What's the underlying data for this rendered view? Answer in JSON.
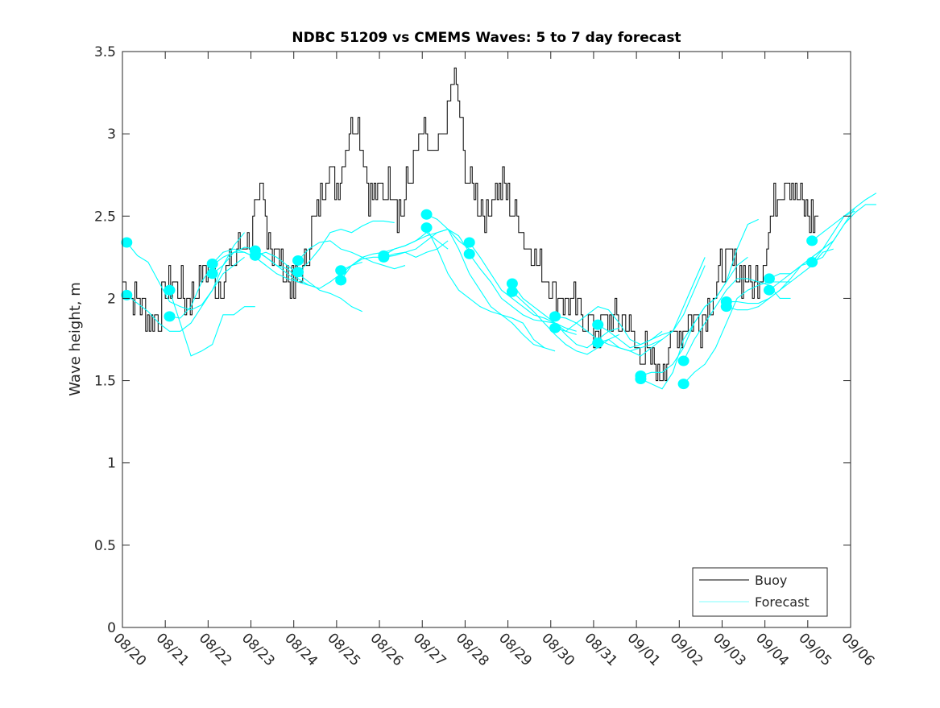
{
  "chart_data": {
    "type": "line",
    "title": "NDBC 51209 vs CMEMS Waves: 5 to 7 day forecast",
    "xlabel": "",
    "ylabel": "Wave height, m",
    "ylim": [
      0,
      3.5
    ],
    "xlim_days": [
      0,
      17
    ],
    "yticks": [
      "0",
      "0.5",
      "1",
      "1.5",
      "2",
      "2.5",
      "3",
      "3.5"
    ],
    "xticks": [
      "08/20",
      "08/21",
      "08/22",
      "08/23",
      "08/24",
      "08/25",
      "08/26",
      "08/27",
      "08/28",
      "08/29",
      "08/30",
      "08/31",
      "09/01",
      "09/02",
      "09/03",
      "09/04",
      "09/05",
      "09/06"
    ],
    "legend": {
      "position": "bottom-right",
      "entries": [
        "Buoy",
        "Forecast"
      ]
    },
    "colors": {
      "buoy": "#000000",
      "forecast": "#00ffff"
    },
    "buoy": {
      "start_day": 0,
      "step_days": 0.25,
      "values": [
        2.1,
        2.0,
        1.95,
        1.85,
        2.05,
        2.1,
        2.0,
        2.1,
        2.2,
        2.1,
        2.2,
        2.3,
        2.4,
        2.6,
        2.3,
        2.2,
        2.05,
        2.2,
        2.5,
        2.8,
        2.7,
        3.0,
        3.1,
        2.6,
        2.6,
        2.7,
        2.5,
        2.8,
        3.0,
        2.8,
        3.0,
        3.35,
        2.8,
        2.65,
        2.5,
        2.7,
        2.6,
        2.5,
        2.3,
        2.2,
        2.05,
        2.0,
        1.95,
        1.9,
        1.8,
        1.85,
        1.9,
        1.85,
        1.7,
        1.65,
        1.55,
        1.7,
        1.8,
        1.9,
        1.85,
        2.0,
        2.2,
        2.2,
        2.15,
        2.1,
        2.3,
        2.6,
        2.8,
        2.6,
        2.5,
        2.5
      ]
    },
    "forecast": {
      "step_days": 0.25,
      "series": [
        {
          "start_day": 0.1,
          "values": [
            2.34,
            2.26,
            2.22,
            2.1,
            1.98,
            1.95,
            1.93,
            1.96,
            2.05,
            2.2,
            2.32,
            2.4
          ]
        },
        {
          "start_day": 0.1,
          "values": [
            2.02,
            1.97,
            1.92,
            1.85,
            1.8,
            1.8,
            1.85,
            1.95,
            2.05,
            2.15,
            2.2,
            2.25
          ]
        },
        {
          "start_day": 1.1,
          "values": [
            2.05,
            1.85,
            1.65,
            1.68,
            1.72,
            1.9,
            1.9,
            1.95,
            1.95
          ]
        },
        {
          "start_day": 1.1,
          "values": [
            1.89,
            1.88,
            1.95,
            2.1,
            2.2,
            2.25,
            2.28,
            2.28,
            2.25,
            2.2
          ]
        },
        {
          "start_day": 2.1,
          "values": [
            2.21,
            2.28,
            2.3,
            2.28,
            2.25,
            2.2,
            2.15,
            2.12,
            2.1,
            2.08
          ]
        },
        {
          "start_day": 2.1,
          "values": [
            2.15,
            2.2,
            2.28,
            2.31,
            2.3,
            2.25,
            2.2,
            2.18,
            2.12,
            2.08
          ]
        },
        {
          "start_day": 3.1,
          "values": [
            2.29,
            2.25,
            2.2,
            2.15,
            2.1,
            2.08,
            2.06,
            2.1,
            2.15,
            2.2,
            2.22
          ]
        },
        {
          "start_day": 3.1,
          "values": [
            2.26,
            2.28,
            2.25,
            2.2,
            2.15,
            2.1,
            2.05,
            2.03,
            2.0,
            1.95,
            1.92
          ]
        },
        {
          "start_day": 4.1,
          "values": [
            2.23,
            2.3,
            2.34,
            2.35,
            2.3,
            2.28,
            2.25,
            2.22,
            2.2,
            2.18,
            2.2
          ]
        },
        {
          "start_day": 4.1,
          "values": [
            2.16,
            2.22,
            2.3,
            2.4,
            2.42,
            2.4,
            2.44,
            2.47,
            2.47,
            2.46
          ]
        },
        {
          "start_day": 5.1,
          "values": [
            2.17,
            2.2,
            2.25,
            2.27,
            2.28,
            2.3,
            2.32,
            2.35,
            2.4,
            2.35,
            2.3
          ]
        },
        {
          "start_day": 5.1,
          "values": [
            2.11,
            2.2,
            2.24,
            2.25,
            2.25,
            2.26,
            2.28,
            2.25,
            2.28,
            2.3,
            2.35
          ]
        },
        {
          "start_day": 6.1,
          "values": [
            2.26,
            2.3,
            2.32,
            2.35,
            2.38,
            2.4,
            2.42,
            2.35,
            2.3
          ]
        },
        {
          "start_day": 6.1,
          "values": [
            2.25,
            2.27,
            2.28,
            2.3,
            2.35,
            2.4,
            2.42,
            2.38,
            2.28
          ]
        },
        {
          "start_day": 7.1,
          "values": [
            2.51,
            2.48,
            2.42,
            2.3,
            2.15,
            2.05,
            1.95,
            1.9,
            1.85,
            1.78,
            1.72,
            1.7,
            1.68
          ]
        },
        {
          "start_day": 7.1,
          "values": [
            2.43,
            2.3,
            2.15,
            2.05,
            2.0,
            1.95,
            1.92,
            1.9,
            1.88,
            1.85,
            1.75,
            1.7
          ]
        },
        {
          "start_day": 8.1,
          "values": [
            2.34,
            2.25,
            2.15,
            2.05,
            2.0,
            1.95,
            1.9,
            1.88,
            1.85,
            1.8,
            1.78
          ]
        },
        {
          "start_day": 8.1,
          "values": [
            2.27,
            2.18,
            2.1,
            2.0,
            1.95,
            1.9,
            1.87,
            1.86,
            1.85,
            1.82,
            1.8
          ]
        },
        {
          "start_day": 9.1,
          "values": [
            2.09,
            2.0,
            1.95,
            1.9,
            1.85,
            1.78,
            1.72,
            1.7,
            1.75,
            1.8,
            1.82
          ]
        },
        {
          "start_day": 9.1,
          "values": [
            2.04,
            1.98,
            1.92,
            1.85,
            1.78,
            1.72,
            1.68,
            1.66,
            1.7,
            1.75,
            1.78
          ]
        },
        {
          "start_day": 10.1,
          "values": [
            1.89,
            1.88,
            1.85,
            1.9,
            1.95,
            1.93,
            1.85,
            1.75,
            1.72,
            1.75,
            1.8
          ]
        },
        {
          "start_day": 10.1,
          "values": [
            1.82,
            1.8,
            1.85,
            1.8,
            1.75,
            1.72,
            1.7,
            1.68,
            1.7,
            1.72,
            1.75
          ]
        },
        {
          "start_day": 11.1,
          "values": [
            1.84,
            1.8,
            1.75,
            1.7,
            1.72,
            1.75,
            1.78,
            1.8,
            1.95,
            2.1,
            2.25
          ]
        },
        {
          "start_day": 11.1,
          "values": [
            1.73,
            1.75,
            1.7,
            1.68,
            1.65,
            1.7,
            1.75,
            1.8,
            1.9,
            2.05,
            2.2
          ]
        },
        {
          "start_day": 12.1,
          "values": [
            1.53,
            1.55,
            1.55,
            1.6,
            1.7,
            1.85,
            1.95,
            2.0,
            2.1,
            2.3,
            2.45,
            2.48
          ]
        },
        {
          "start_day": 12.1,
          "values": [
            1.51,
            1.48,
            1.45,
            1.55,
            1.75,
            1.85,
            1.95,
            2.0,
            2.1,
            2.2,
            2.25
          ]
        },
        {
          "start_day": 13.1,
          "values": [
            1.62,
            1.75,
            1.85,
            1.95,
            2.05,
            2.12,
            2.12,
            2.1,
            2.08,
            2.0,
            2.0
          ]
        },
        {
          "start_day": 13.1,
          "values": [
            1.48,
            1.55,
            1.6,
            1.7,
            1.85,
            2.0,
            2.05,
            2.08,
            2.1,
            2.1,
            2.1
          ]
        },
        {
          "start_day": 14.1,
          "values": [
            1.98,
            1.98,
            1.97,
            1.97,
            2.0,
            2.05,
            2.12,
            2.2,
            2.25,
            2.3,
            2.35
          ]
        },
        {
          "start_day": 14.1,
          "values": [
            1.95,
            1.93,
            1.93,
            1.95,
            2.0,
            2.05,
            2.1,
            2.15,
            2.2,
            2.28,
            2.3
          ]
        },
        {
          "start_day": 15.1,
          "values": [
            2.12,
            2.15,
            2.15,
            2.2,
            2.25,
            2.3,
            2.35,
            2.45,
            2.52,
            2.57,
            2.57
          ]
        },
        {
          "start_day": 15.1,
          "values": [
            2.05,
            2.1,
            2.15,
            2.2,
            2.22,
            2.25,
            2.35,
            2.45,
            2.55,
            2.6,
            2.64
          ]
        },
        {
          "start_day": 16.1,
          "values": [
            2.35,
            2.4,
            2.45,
            2.5,
            2.55
          ]
        },
        {
          "start_day": 16.1,
          "values": [
            2.22,
            2.3,
            2.4,
            2.5,
            2.53
          ]
        }
      ]
    }
  }
}
